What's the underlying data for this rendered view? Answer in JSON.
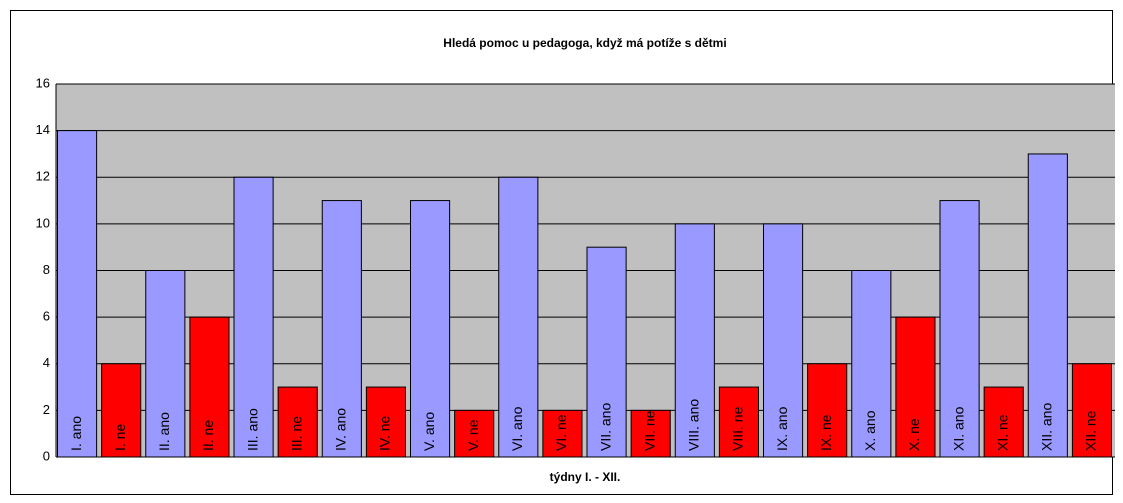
{
  "chart_data": {
    "type": "bar",
    "title": "Hledá pomoc u pedagoga, když má potíže s dětmi",
    "x_label": "týdny I. - XII.",
    "categories": [
      "I. ano",
      "I. ne",
      "II. ano",
      "II. ne",
      "III. ano",
      "III. ne",
      "IV. ano",
      "IV. ne",
      "V. ano",
      "V. ne",
      "VI. ano",
      "VI. ne",
      "VII. ano",
      "VII. ne",
      "VIII. ano",
      "VIII. ne",
      "IX. ano",
      "IX. ne",
      "X. ano",
      "X. ne",
      "XI. ano",
      "XI. ne",
      "XII. ano",
      "XII. ne"
    ],
    "values": [
      14,
      4,
      8,
      6,
      12,
      3,
      11,
      3,
      11,
      2,
      12,
      2,
      9,
      2,
      10,
      3,
      10,
      4,
      8,
      6,
      11,
      3,
      13,
      4
    ],
    "colors": [
      "#9999ff",
      "#ff0000",
      "#9999ff",
      "#ff0000",
      "#9999ff",
      "#ff0000",
      "#9999ff",
      "#ff0000",
      "#9999ff",
      "#ff0000",
      "#9999ff",
      "#ff0000",
      "#9999ff",
      "#ff0000",
      "#9999ff",
      "#ff0000",
      "#9999ff",
      "#ff0000",
      "#9999ff",
      "#ff0000",
      "#9999ff",
      "#ff0000",
      "#9999ff",
      "#ff0000"
    ],
    "ylim": [
      0,
      16
    ],
    "yticks": [
      0,
      2,
      4,
      6,
      8,
      10,
      12,
      14,
      16
    ],
    "grid": true
  }
}
